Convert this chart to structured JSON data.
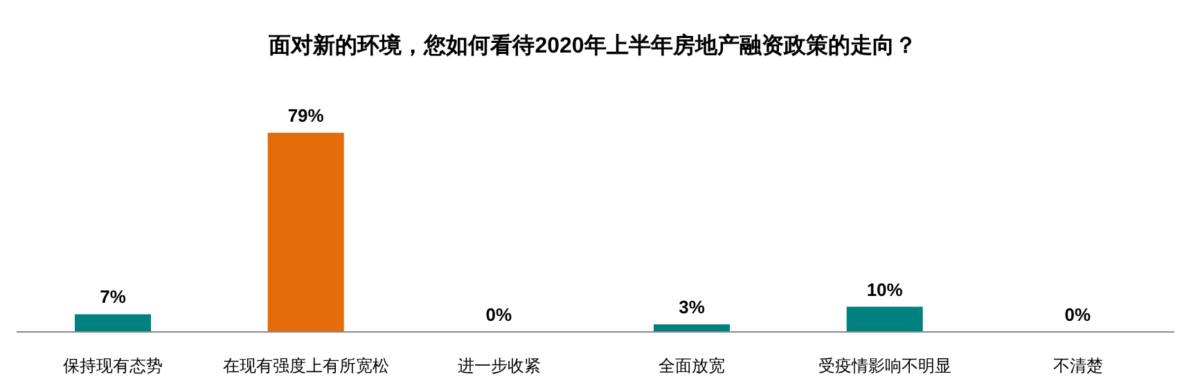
{
  "chart_data": {
    "type": "bar",
    "title": "面对新的环境，您如何看待2020年上半年房地产融资政策的走向？",
    "categories": [
      "保持现有态势",
      "在现有强度上有所宽松",
      "进一步收紧",
      "全面放宽",
      "受疫情影响不明显",
      "不清楚"
    ],
    "values": [
      7,
      79,
      0,
      3,
      10,
      0
    ],
    "value_labels": [
      "7%",
      "79%",
      "0%",
      "3%",
      "10%",
      "0%"
    ],
    "colors": [
      "#00807f",
      "#e46c0a",
      "#00807f",
      "#00807f",
      "#00807f",
      "#00807f"
    ],
    "grid": false,
    "legend": false
  }
}
